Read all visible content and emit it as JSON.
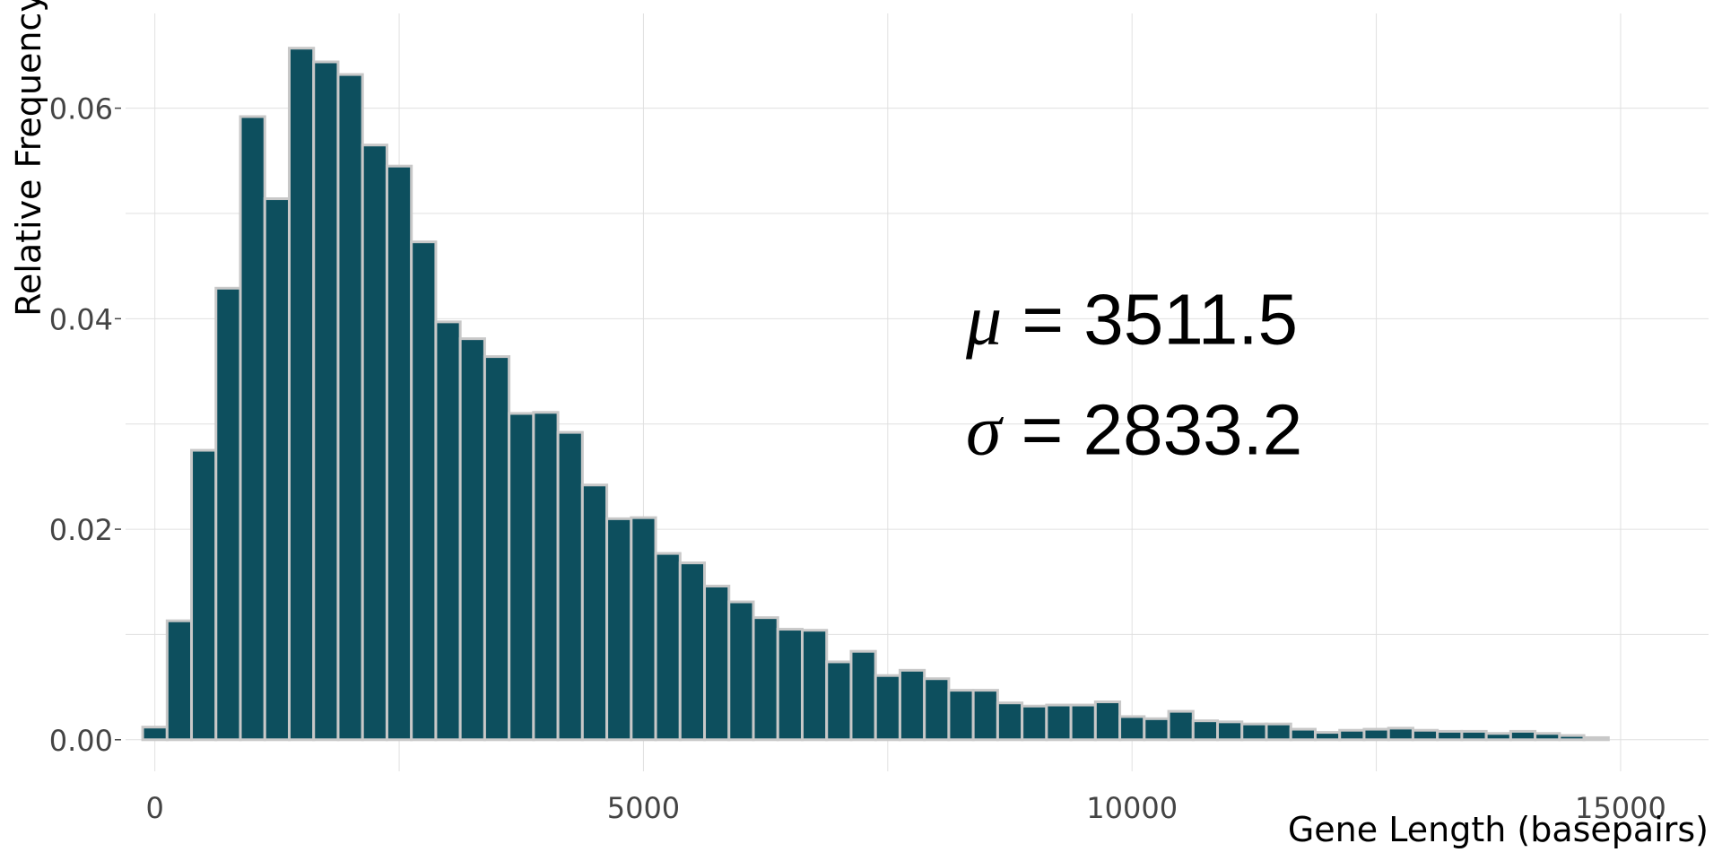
{
  "chart_data": {
    "type": "bar",
    "variant": "histogram",
    "xlabel": "Gene Length (basepairs)",
    "ylabel": "Relative Frequency",
    "xlim": [
      -300,
      15900
    ],
    "ylim": [
      -0.003,
      0.069
    ],
    "xticks": [
      0,
      5000,
      10000,
      15000
    ],
    "xtick_labels": [
      "0",
      "5000",
      "10000",
      "15000"
    ],
    "yticks": [
      0.0,
      0.02,
      0.04,
      0.06
    ],
    "ytick_labels": [
      "0.00",
      "0.02",
      "0.04",
      "0.06"
    ],
    "grid": true,
    "bin_width": 250,
    "bin_start": -125,
    "bar_color": "#0d4f5e",
    "bar_edge_color": "#c8c8c8",
    "values": [
      0.0012,
      0.0113,
      0.0275,
      0.0429,
      0.0592,
      0.0514,
      0.0657,
      0.0644,
      0.0632,
      0.0565,
      0.0545,
      0.0473,
      0.0397,
      0.0381,
      0.0364,
      0.031,
      0.0311,
      0.0292,
      0.0242,
      0.021,
      0.0211,
      0.0177,
      0.0168,
      0.0146,
      0.0131,
      0.0116,
      0.0105,
      0.0104,
      0.0074,
      0.0084,
      0.0061,
      0.0066,
      0.0058,
      0.0047,
      0.0047,
      0.0035,
      0.0032,
      0.0033,
      0.0033,
      0.0036,
      0.0022,
      0.002,
      0.0027,
      0.0018,
      0.0017,
      0.0015,
      0.0015,
      0.001,
      0.0007,
      0.0009,
      0.001,
      0.0011,
      0.0009,
      0.0008,
      0.0008,
      0.0006,
      0.0008,
      0.0006,
      0.0004,
      0.0002
    ],
    "annotations": [
      {
        "symbol": "μ",
        "text": " = 3511.5"
      },
      {
        "symbol": "σ",
        "text": " = 2833.2"
      }
    ]
  }
}
